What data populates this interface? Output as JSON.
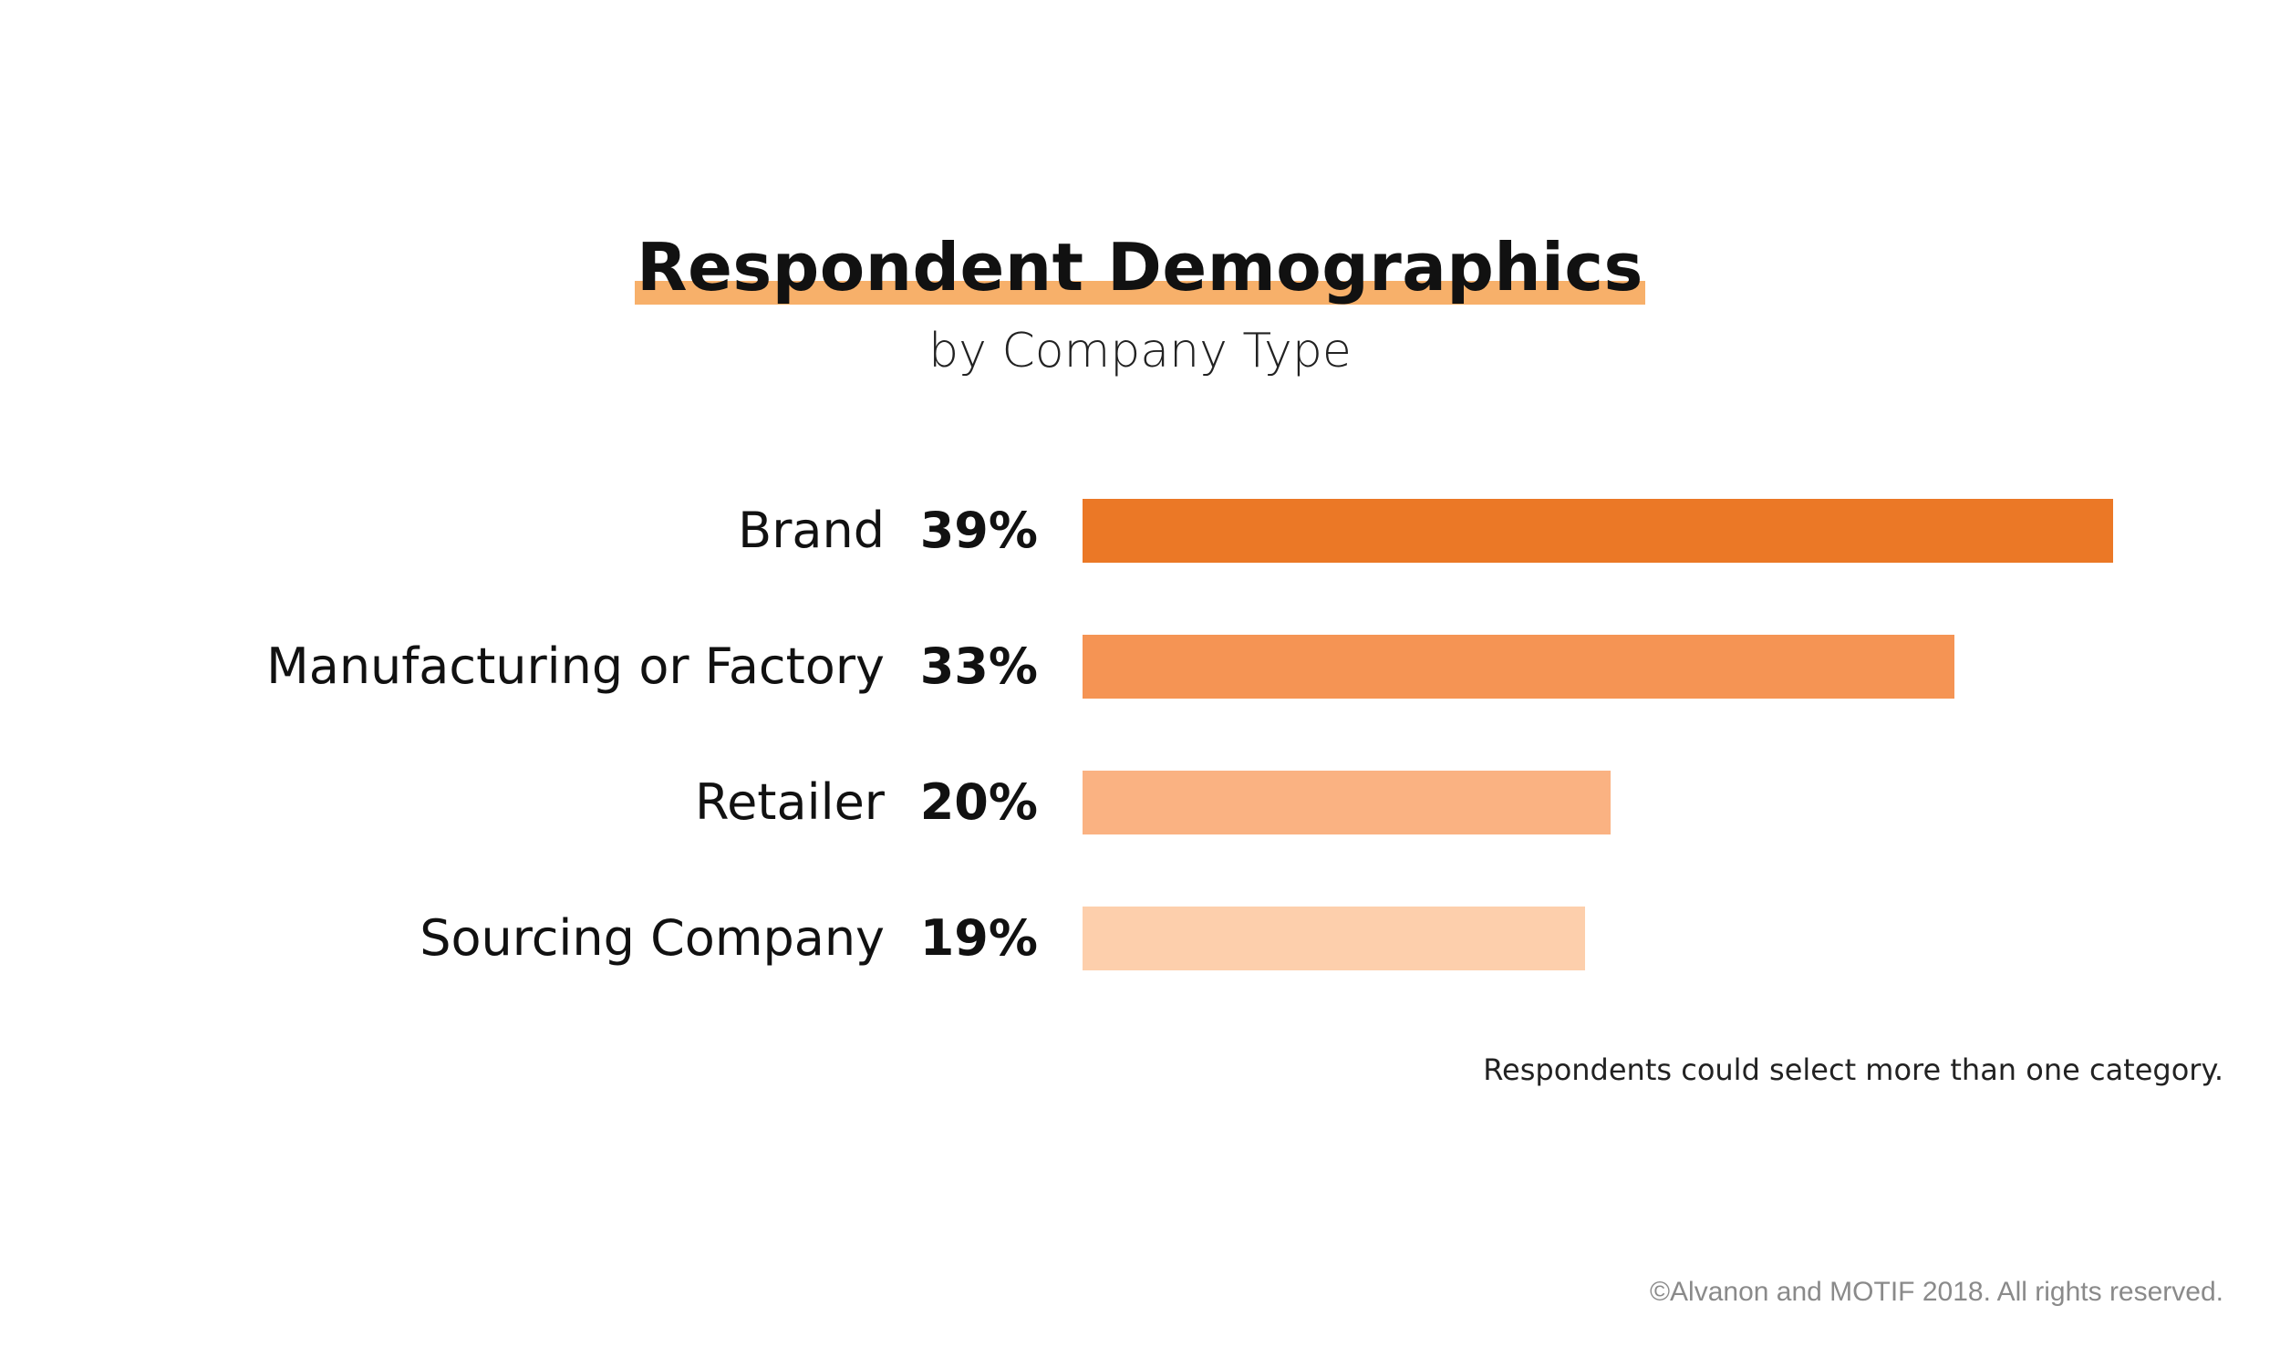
{
  "chart_data": {
    "type": "bar",
    "orientation": "horizontal",
    "title": "Respondent Demographics",
    "subtitle": "by Company Type",
    "categories": [
      "Brand",
      "Manufacturing or Factory",
      "Retailer",
      "Sourcing Company"
    ],
    "values": [
      39,
      33,
      20,
      19
    ],
    "value_labels": [
      "39%",
      "33%",
      "20%",
      "19%"
    ],
    "bar_colors": [
      "#eb7826",
      "#f59454",
      "#fab282",
      "#fdcfac"
    ],
    "xlim": [
      0,
      39
    ],
    "grid": false,
    "axes_visible": false
  },
  "title_highlight_color": "#f7b06a",
  "note": "Respondents could select more than one category.",
  "copyright": "©Alvanon and MOTIF 2018. All rights reserved."
}
